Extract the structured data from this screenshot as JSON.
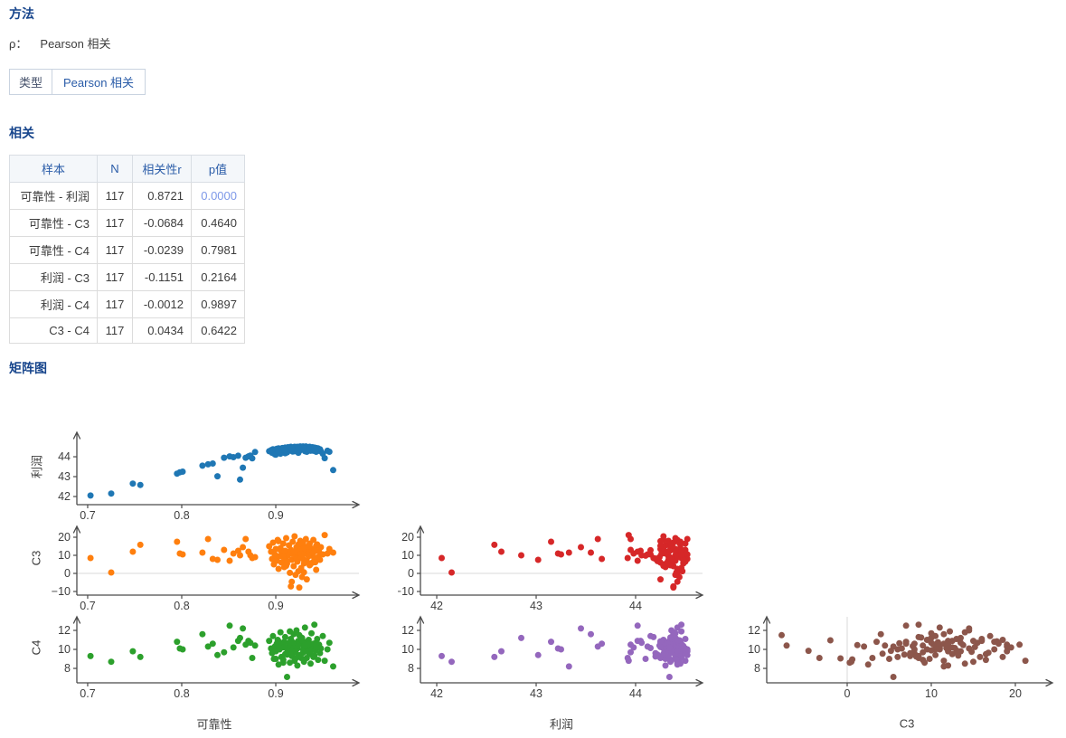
{
  "method": {
    "title": "方法",
    "rho_label": "ρ：",
    "rho_value": "Pearson 相关",
    "type_table": {
      "label": "类型",
      "value": "Pearson 相关"
    }
  },
  "correlation": {
    "title": "相关",
    "table": {
      "headers": [
        "样本",
        "N",
        "相关性r",
        "p值"
      ],
      "rows": [
        [
          "可靠性 - 利润",
          "117",
          "0.8721",
          "0.0000"
        ],
        [
          "可靠性 - C3",
          "117",
          "-0.0684",
          "0.4640"
        ],
        [
          "可靠性 - C4",
          "117",
          "-0.0239",
          "0.7981"
        ],
        [
          "利润 - C3",
          "117",
          "-0.1151",
          "0.2164"
        ],
        [
          "利润 - C4",
          "117",
          "-0.0012",
          "0.9897"
        ],
        [
          "C3 - C4",
          "117",
          "0.0434",
          "0.6422"
        ]
      ],
      "p_highlight": {
        "row": 0,
        "col": 3
      }
    }
  },
  "matrix": {
    "title": "矩阵图"
  },
  "chart_data": {
    "type": "scatter",
    "subtype": "scatterplot-matrix-lower-triangle",
    "n": 117,
    "variables": [
      "可靠性",
      "利润",
      "C3",
      "C4"
    ],
    "row_labels": [
      "利润",
      "C3",
      "C4"
    ],
    "col_labels": [
      "可靠性",
      "利润",
      "C3"
    ],
    "colors": {
      "profit_vs_reliability": "#1f77b4",
      "c3_vs_reliability": "#ff7f0e",
      "c3_vs_profit": "#d62728",
      "c4_vs_reliability": "#2ca02c",
      "c4_vs_profit": "#9467bd",
      "c4_vs_c3": "#8c564b",
      "zero_line": "#d8d8d8",
      "axis": "#4b4b4b"
    },
    "observations": {
      "可靠性": [
        0.703,
        0.725,
        0.748,
        0.756,
        0.795,
        0.798,
        0.801,
        0.822,
        0.828,
        0.833,
        0.838,
        0.845,
        0.851,
        0.855,
        0.86,
        0.862,
        0.865,
        0.868,
        0.871,
        0.873,
        0.875,
        0.878,
        0.893,
        0.895,
        0.896,
        0.897,
        0.898,
        0.899,
        0.9,
        0.901,
        0.902,
        0.903,
        0.904,
        0.905,
        0.906,
        0.907,
        0.908,
        0.909,
        0.91,
        0.91,
        0.911,
        0.912,
        0.913,
        0.914,
        0.915,
        0.916,
        0.916,
        0.917,
        0.918,
        0.919,
        0.92,
        0.92,
        0.921,
        0.922,
        0.923,
        0.923,
        0.924,
        0.925,
        0.926,
        0.926,
        0.927,
        0.928,
        0.929,
        0.93,
        0.93,
        0.931,
        0.932,
        0.933,
        0.933,
        0.934,
        0.935,
        0.936,
        0.936,
        0.937,
        0.938,
        0.939,
        0.94,
        0.94,
        0.941,
        0.942,
        0.943,
        0.944,
        0.945,
        0.946,
        0.947,
        0.948,
        0.95,
        0.952,
        0.955,
        0.957,
        0.961,
        0.9,
        0.905,
        0.912,
        0.918,
        0.924,
        0.931,
        0.937,
        0.943,
        0.908,
        0.915,
        0.922,
        0.929,
        0.935,
        0.941,
        0.903,
        0.911,
        0.919,
        0.927,
        0.934,
        0.942,
        0.921,
        0.928,
        0.917,
        0.924,
        0.93,
        0.909
      ],
      "利润": [
        42.05,
        42.15,
        42.65,
        42.58,
        43.15,
        43.22,
        43.25,
        43.55,
        43.62,
        43.66,
        43.02,
        43.95,
        44.02,
        43.98,
        44.05,
        42.85,
        43.45,
        43.95,
        44.02,
        44.06,
        43.92,
        44.24,
        44.28,
        44.33,
        44.2,
        44.38,
        44.3,
        44.12,
        44.35,
        44.4,
        44.28,
        44.42,
        44.33,
        44.38,
        44.25,
        44.44,
        44.36,
        44.3,
        44.46,
        44.18,
        44.4,
        44.34,
        44.48,
        44.3,
        44.42,
        44.38,
        44.5,
        44.33,
        44.45,
        44.38,
        44.5,
        44.28,
        44.44,
        44.36,
        44.5,
        44.3,
        44.45,
        44.38,
        44.52,
        44.33,
        44.46,
        44.4,
        44.52,
        44.35,
        44.48,
        44.42,
        44.52,
        44.38,
        44.25,
        44.48,
        44.42,
        44.5,
        44.35,
        44.45,
        44.4,
        44.48,
        44.42,
        44.3,
        44.46,
        44.38,
        44.44,
        44.35,
        44.42,
        44.3,
        44.38,
        44.28,
        44.15,
        43.93,
        44.3,
        44.25,
        43.33,
        44.1,
        44.15,
        44.22,
        44.26,
        44.2,
        44.28,
        44.3,
        44.25,
        44.42,
        44.46,
        44.48,
        44.44,
        44.46,
        44.4,
        44.25,
        44.28,
        44.31,
        44.35,
        44.36,
        44.32,
        44.4,
        44.44,
        44.42,
        44.47,
        44.41,
        44.34
      ],
      "C3": [
        8.5,
        0.5,
        12.0,
        15.8,
        17.5,
        11.0,
        10.5,
        11.5,
        19.0,
        8.0,
        7.5,
        13.0,
        7.0,
        11.0,
        12.5,
        10.0,
        14.5,
        19.0,
        12.0,
        10.0,
        8.5,
        9.0,
        15.0,
        12.0,
        8.0,
        17.0,
        5.0,
        10.5,
        13.5,
        7.0,
        18.5,
        2.5,
        9.5,
        14.0,
        6.0,
        11.0,
        16.5,
        3.5,
        12.5,
        8.5,
        19.5,
        5.5,
        10.0,
        15.5,
        0.3,
        -7.2,
        13.0,
        7.5,
        17.5,
        4.0,
        11.5,
        20.5,
        9.0,
        14.5,
        6.5,
        12.0,
        16.0,
        -7.8,
        10.5,
        18.0,
        3.0,
        13.5,
        8.0,
        15.0,
        5.5,
        11.0,
        19.0,
        7.0,
        -3.3,
        12.5,
        9.5,
        16.5,
        4.5,
        14.0,
        10.0,
        6.0,
        18.5,
        11.5,
        8.5,
        13.0,
        2.0,
        16.0,
        9.0,
        12.0,
        7.5,
        14.5,
        10.5,
        21.2,
        11.0,
        13.5,
        11.5,
        9.8,
        12.8,
        6.8,
        10.8,
        8.2,
        13.8,
        5.2,
        15.2,
        9.2,
        12.2,
        7.8,
        16.8,
        10.2,
        13.2,
        17.8,
        4.2,
        11.8,
        8.8,
        14.8,
        6.2,
        -0.8,
        -2.0,
        -4.6,
        1.2,
        0.6,
        12.3
      ],
      "C4": [
        9.3,
        8.7,
        9.8,
        9.2,
        10.8,
        10.1,
        10.0,
        11.6,
        10.3,
        10.6,
        9.4,
        9.7,
        12.5,
        10.2,
        10.9,
        11.2,
        12.2,
        10.5,
        10.9,
        10.7,
        9.1,
        10.4,
        10.9,
        10.1,
        9.6,
        11.4,
        9.0,
        10.3,
        9.8,
        10.6,
        11.0,
        8.4,
        10.0,
        11.8,
        9.2,
        10.4,
        8.9,
        10.8,
        9.5,
        11.3,
        10.2,
        7.1,
        9.9,
        10.7,
        8.6,
        10.4,
        11.1,
        9.3,
        10.0,
        11.6,
        8.8,
        10.5,
        9.7,
        12.0,
        10.1,
        8.3,
        10.9,
        11.5,
        9.4,
        10.6,
        9.1,
        11.2,
        10.0,
        8.7,
        10.3,
        12.3,
        9.8,
        10.8,
        9.1,
        10.2,
        11.0,
        9.5,
        10.4,
        8.5,
        11.7,
        10.0,
        9.2,
        10.6,
        12.6,
        9.9,
        10.3,
        11.1,
        8.9,
        10.5,
        9.6,
        10.1,
        11.4,
        8.8,
        10.0,
        10.7,
        8.2,
        9.0,
        10.15,
        9.45,
        10.75,
        9.25,
        10.45,
        9.85,
        10.25,
        8.6,
        11.9,
        10.35,
        9.65,
        10.55,
        9.35,
        10.85,
        9.55,
        10.15,
        11.25,
        9.75,
        10.65,
        9.05,
        10.95,
        9.85,
        10.45,
        8.95,
        10.2
      ]
    },
    "panels": [
      {
        "id": "profit_vs_reliability",
        "x": "可靠性",
        "y": "利润",
        "color": "#1f77b4",
        "zero": null,
        "xticks": [
          0.7,
          0.8,
          0.9
        ],
        "xtick_labels": [
          "0.7",
          "0.8",
          "0.9"
        ],
        "yticks": [
          42,
          43,
          44
        ],
        "ytick_labels": [
          "42",
          "43",
          "44"
        ],
        "xlim": [
          0.6885,
          0.9865
        ],
        "ylim": [
          41.59,
          45.23
        ]
      },
      {
        "id": "c3_vs_reliability",
        "x": "可靠性",
        "y": "C3",
        "color": "#ff7f0e",
        "zero": "h",
        "xticks": [
          0.7,
          0.8,
          0.9
        ],
        "xtick_labels": [
          "0.7",
          "0.8",
          "0.9"
        ],
        "yticks": [
          -10,
          0,
          10,
          20
        ],
        "ytick_labels": [
          "−10",
          "0",
          "10",
          "20"
        ],
        "xlim": [
          0.6885,
          0.9865
        ],
        "ylim": [
          -12,
          26
        ]
      },
      {
        "id": "c3_vs_profit",
        "x": "利润",
        "y": "C3",
        "color": "#d62728",
        "zero": "h",
        "xticks": [
          42,
          43,
          44
        ],
        "xtick_labels": [
          "42",
          "43",
          "44"
        ],
        "yticks": [
          -10,
          0,
          10,
          20
        ],
        "ytick_labels": [
          "−10",
          "0",
          "10",
          "20"
        ],
        "xlim": [
          41.836,
          44.655
        ],
        "ylim": [
          -12,
          26
        ]
      },
      {
        "id": "c4_vs_reliability",
        "x": "可靠性",
        "y": "C4",
        "color": "#2ca02c",
        "zero": null,
        "xticks": [
          0.7,
          0.8,
          0.9
        ],
        "xtick_labels": [
          "0.7",
          "0.8",
          "0.9"
        ],
        "yticks": [
          8,
          10,
          12
        ],
        "ytick_labels": [
          "8",
          "10",
          "12"
        ],
        "xlim": [
          0.6885,
          0.9865
        ],
        "ylim": [
          6.48,
          13.43
        ]
      },
      {
        "id": "c4_vs_profit",
        "x": "利润",
        "y": "C4",
        "color": "#9467bd",
        "zero": null,
        "xticks": [
          42,
          43,
          44
        ],
        "xtick_labels": [
          "42",
          "43",
          "44"
        ],
        "yticks": [
          8,
          10,
          12
        ],
        "ytick_labels": [
          "8",
          "10",
          "12"
        ],
        "xlim": [
          41.836,
          44.655
        ],
        "ylim": [
          6.48,
          13.43
        ]
      },
      {
        "id": "c4_vs_c3",
        "x": "C3",
        "y": "C4",
        "color": "#8c564b",
        "zero": "v",
        "xticks": [
          0,
          10,
          20
        ],
        "xtick_labels": [
          "0",
          "10",
          "20"
        ],
        "yticks": [
          8,
          10,
          12
        ],
        "ytick_labels": [
          "8",
          "10",
          "12"
        ],
        "xlim": [
          -9.57,
          23.98
        ],
        "ylim": [
          6.48,
          13.43
        ]
      }
    ]
  }
}
